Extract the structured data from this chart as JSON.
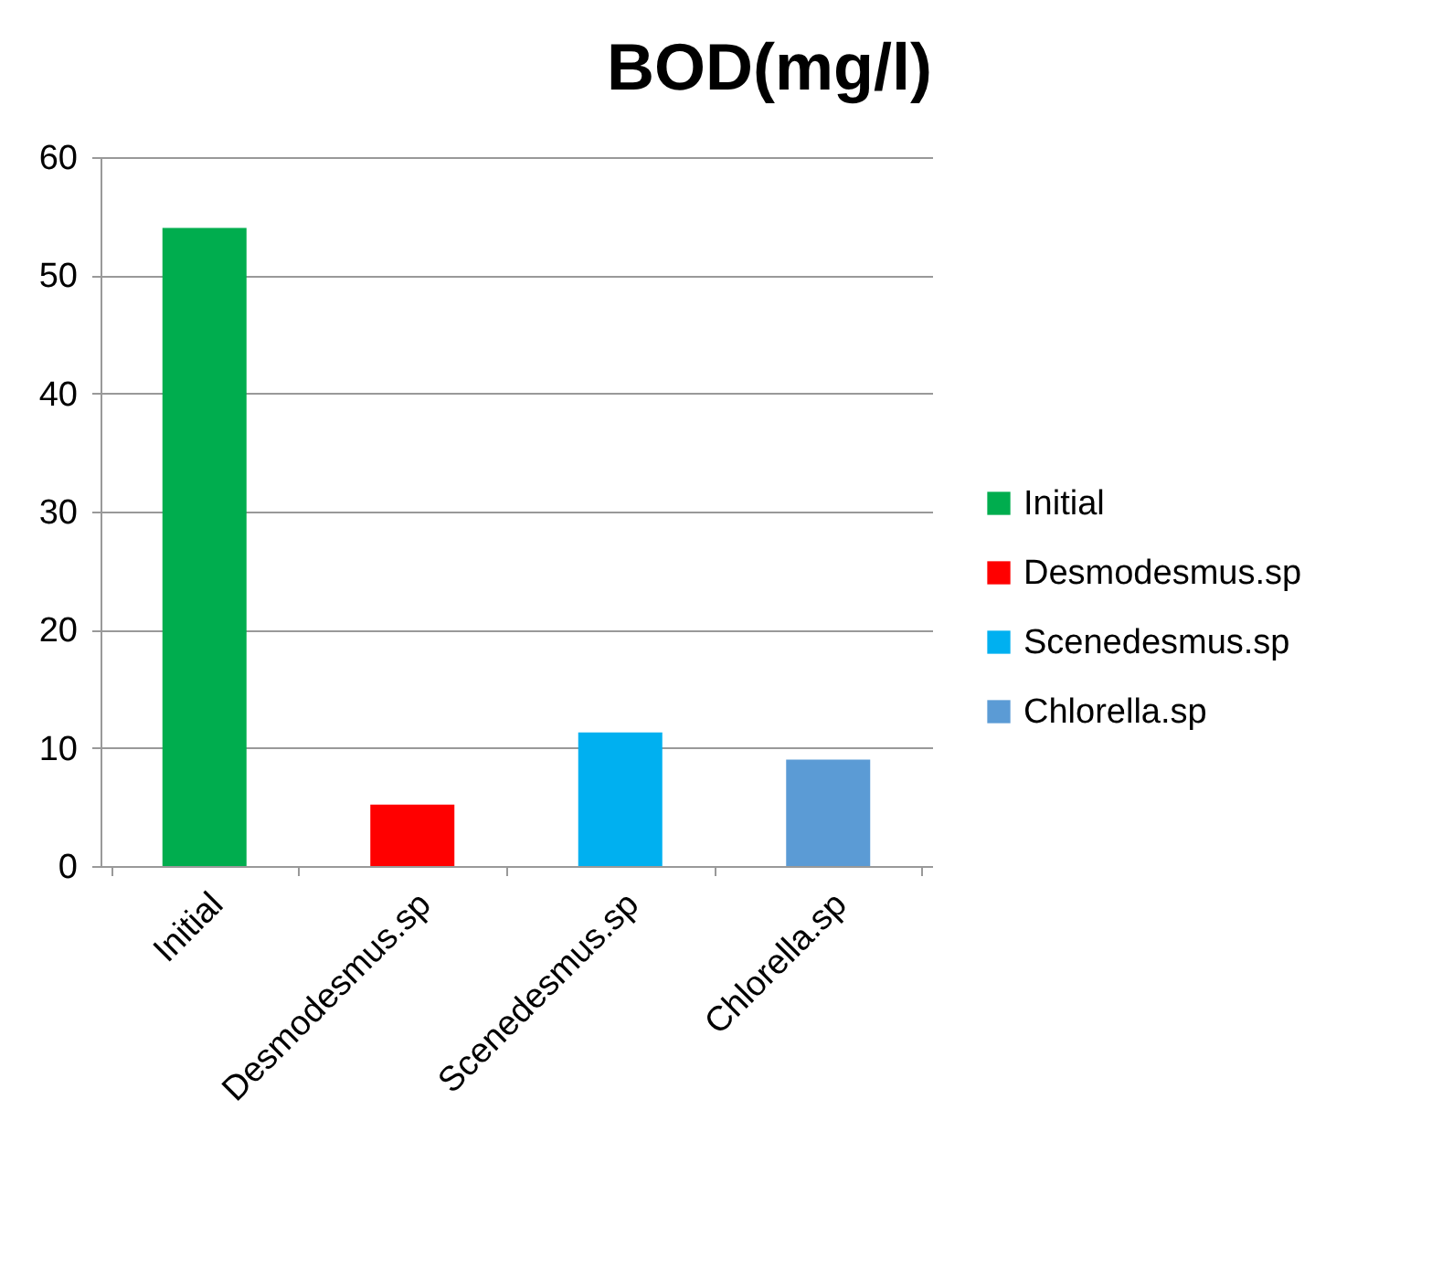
{
  "chart_data": {
    "type": "bar",
    "title": "BOD(mg/l)",
    "categories": [
      "Initial",
      "Desmodesmus.sp",
      "Scenedesmus.sp",
      "Chlorella.sp"
    ],
    "series": [
      {
        "name": "Initial",
        "color": "#00ad4e",
        "values": [
          54,
          null,
          null,
          null
        ]
      },
      {
        "name": "Desmodesmus.sp",
        "color": "#ff0000",
        "values": [
          null,
          5.2,
          null,
          null
        ]
      },
      {
        "name": "Scenedesmus.sp",
        "color": "#00b0f0",
        "values": [
          null,
          null,
          11.3,
          null
        ]
      },
      {
        "name": "Chlorella.sp",
        "color": "#5b9bd5",
        "values": [
          null,
          null,
          null,
          9
        ]
      }
    ],
    "ylim": [
      0,
      60
    ],
    "yticks": [
      0,
      10,
      20,
      30,
      40,
      50,
      60
    ],
    "grid": "y",
    "legend": "right"
  }
}
